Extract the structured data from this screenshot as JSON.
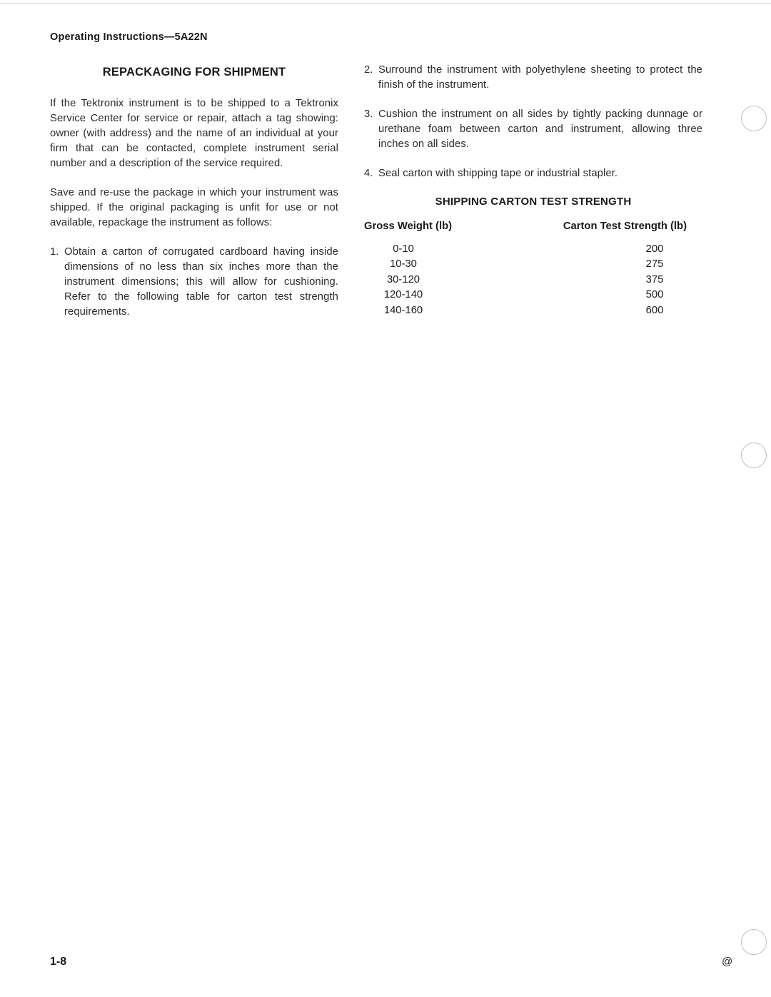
{
  "header": {
    "running": "Operating Instructions—5A22N"
  },
  "left": {
    "title": "REPACKAGING FOR SHIPMENT",
    "p1": "If the Tektronix instrument is to be shipped to a Tektronix Service Center for service or repair, attach a tag showing: owner (with address) and the name of an individual at your firm that can be contacted, complete instrument serial number and a description of the service required.",
    "p2": "Save and re-use the package in which your instrument was shipped. If the original packaging is unfit for use or not available, repackage the instrument as follows:",
    "item1_num": "1.",
    "item1": "Obtain a carton of corrugated cardboard having inside dimensions of no less than six inches more than the instrument dimensions; this will allow for cushioning. Refer to the following table for carton test strength requirements."
  },
  "right": {
    "item2_num": "2.",
    "item2": "Surround the instrument with polyethylene sheeting to protect the finish of the instrument.",
    "item3_num": "3.",
    "item3": "Cushion the instrument on all sides by tightly packing dunnage or urethane foam between carton and instrument, allowing three inches on all sides.",
    "item4_num": "4.",
    "item4": "Seal carton with shipping tape or industrial stapler.",
    "table_title": "SHIPPING CARTON TEST STRENGTH",
    "th_left": "Gross Weight (lb)",
    "th_right": "Carton Test Strength (lb)",
    "rows": [
      {
        "w": "0-10",
        "s": "200"
      },
      {
        "w": "10-30",
        "s": "275"
      },
      {
        "w": "30-120",
        "s": "375"
      },
      {
        "w": "120-140",
        "s": "500"
      },
      {
        "w": "140-160",
        "s": "600"
      }
    ]
  },
  "footer": {
    "page": "1-8",
    "mark": "@"
  }
}
